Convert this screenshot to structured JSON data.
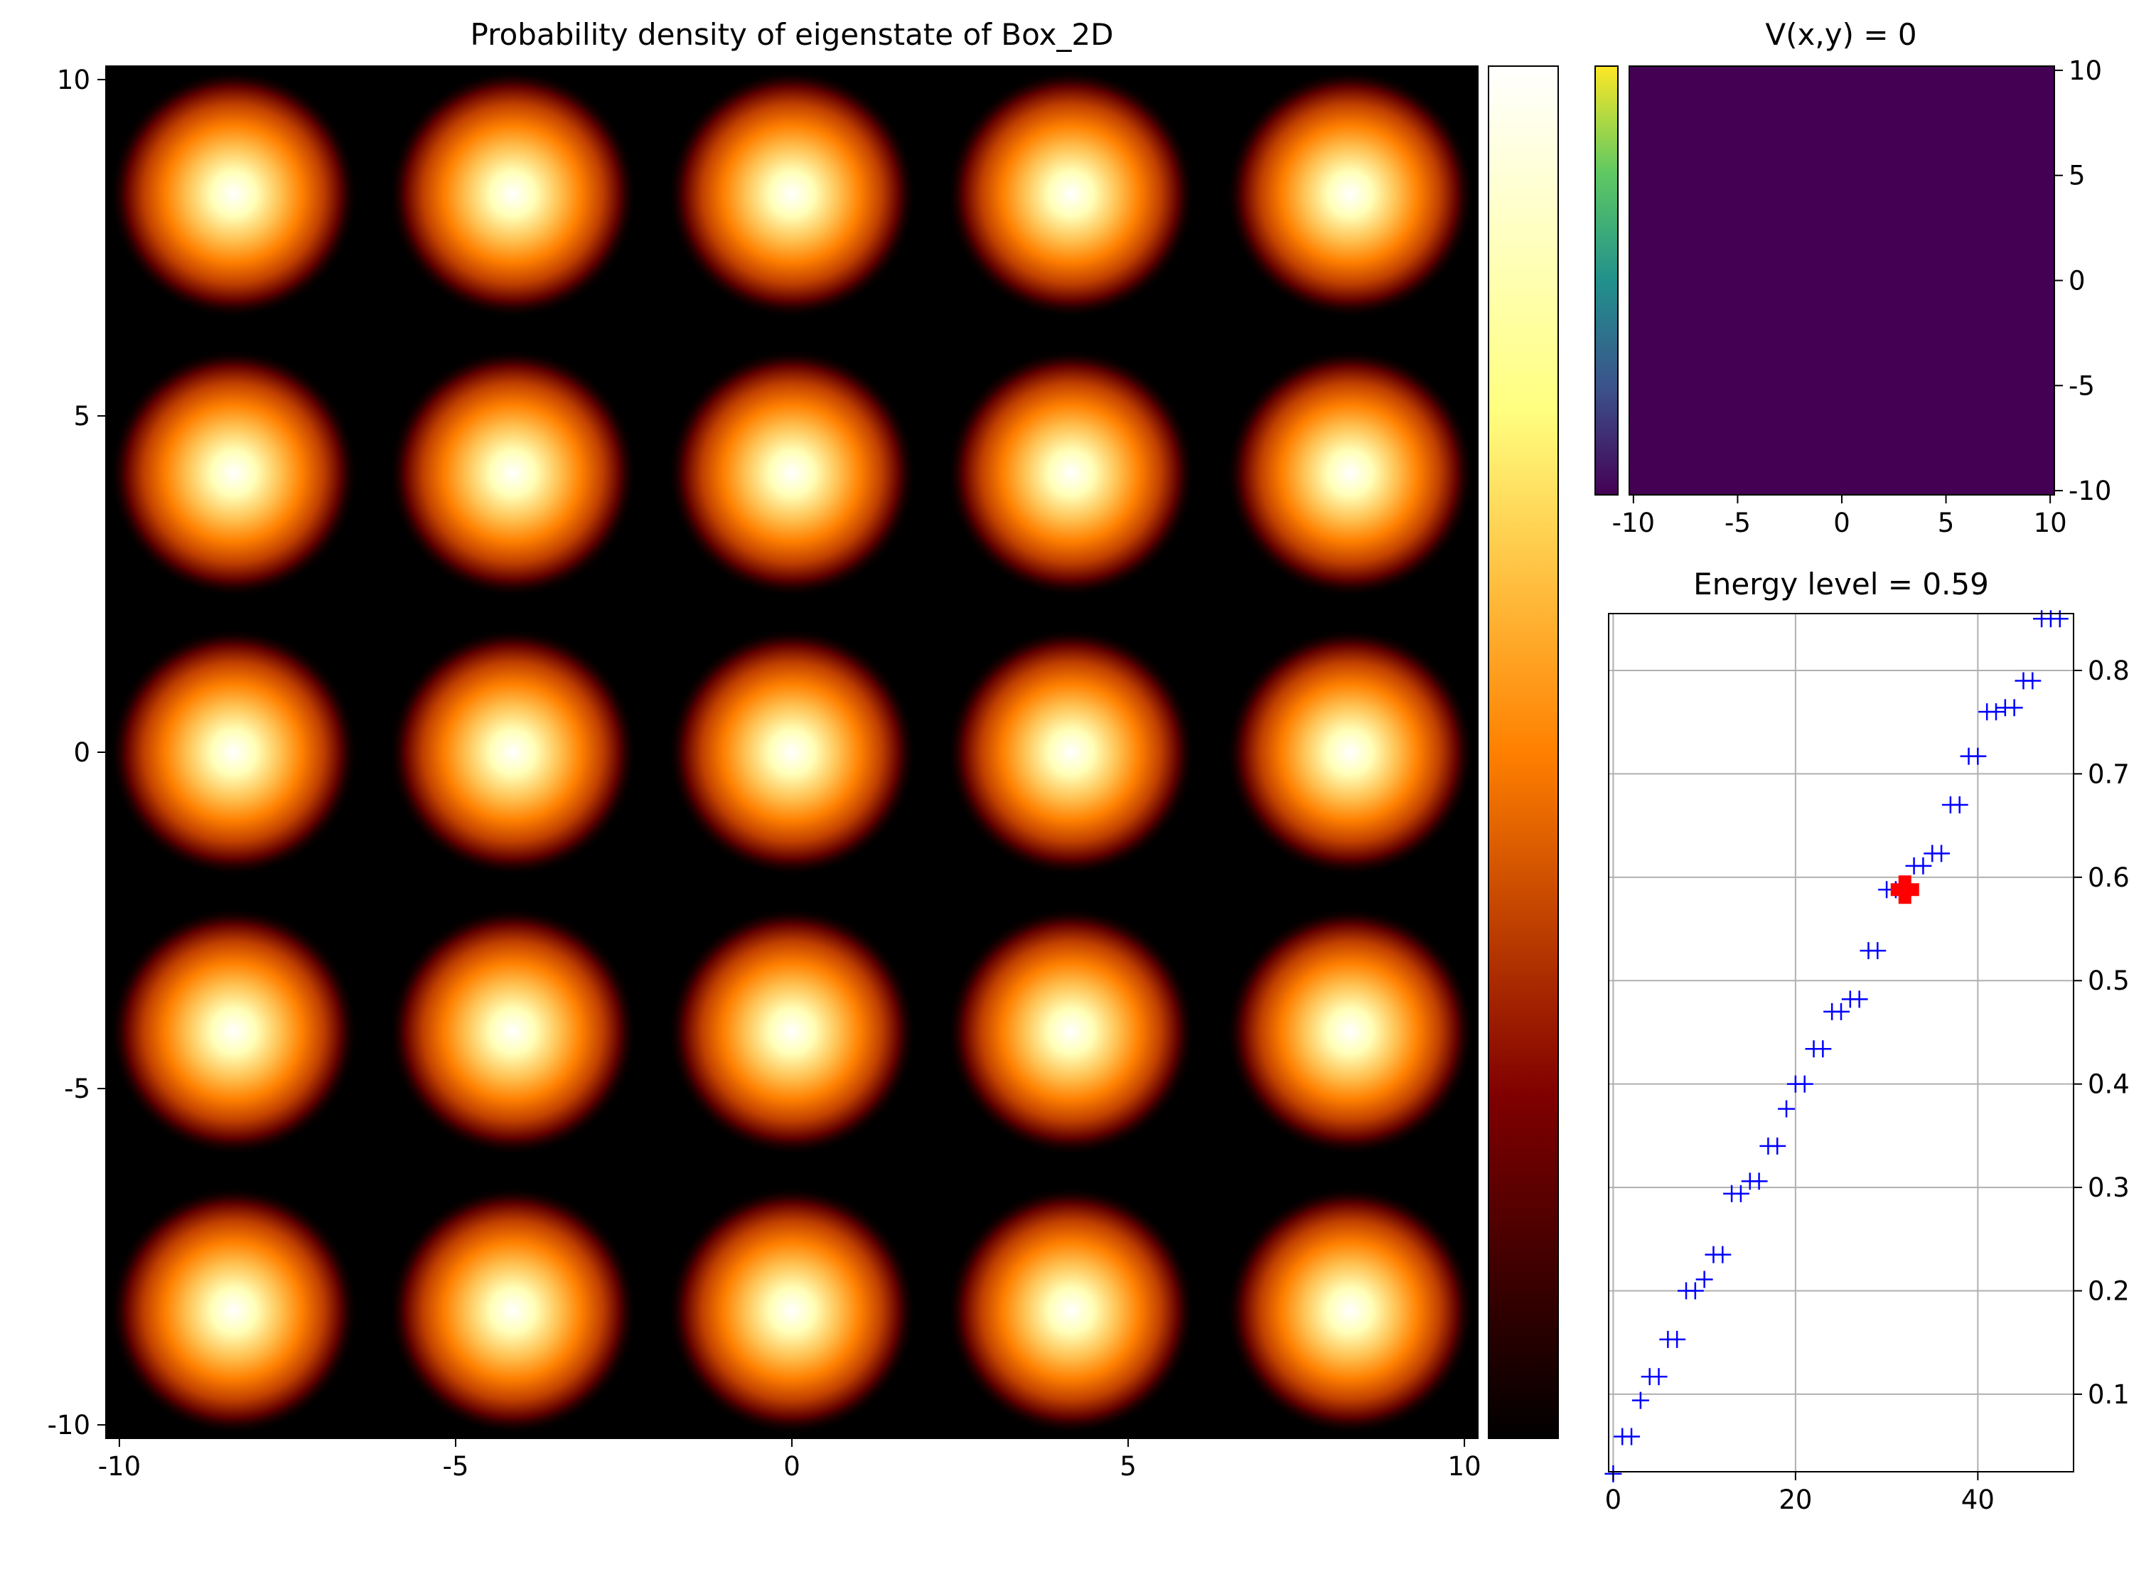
{
  "chart_data": [
    {
      "type": "heatmap",
      "title": "Probability density of eigenstate of Box_2D",
      "xlim": [
        -10.2,
        10.2
      ],
      "ylim": [
        -10.2,
        10.2
      ],
      "xticks": [
        -10,
        -5,
        0,
        5,
        10
      ],
      "yticks": [
        -10,
        -5,
        0,
        5,
        10
      ],
      "xtick_labels": [
        "-10",
        "-5",
        "0",
        "5",
        "10"
      ],
      "ytick_labels": [
        "-10",
        "-5",
        "0",
        "5",
        "10"
      ],
      "colormap": "afmhot",
      "peaks_x": [
        -8.3,
        -4.15,
        0.0,
        4.15,
        8.3
      ],
      "peaks_y": [
        8.3,
        4.15,
        0.0,
        -4.15,
        -8.3
      ],
      "colorbar": "right",
      "grid": false
    },
    {
      "type": "heatmap",
      "title": "V(x,y) = 0",
      "xlim": [
        -10.2,
        10.2
      ],
      "ylim": [
        -10.2,
        10.2
      ],
      "xticks": [
        -10,
        -5,
        0,
        5,
        10
      ],
      "yticks": [
        -10,
        -5,
        0,
        5,
        10
      ],
      "xtick_labels": [
        "-10",
        "-5",
        "0",
        "5",
        "10"
      ],
      "ytick_labels": [
        "10",
        "5",
        "0",
        "-5",
        "-10"
      ],
      "value": 0,
      "colormap": "viridis",
      "colorbar": "left",
      "grid": false
    },
    {
      "type": "scatter",
      "title": "Energy level = 0.59",
      "xlim": [
        -0.5,
        50.5
      ],
      "ylim": [
        0.025,
        0.855
      ],
      "xticks": [
        0,
        20,
        40
      ],
      "yticks": [
        0.1,
        0.2,
        0.3,
        0.4,
        0.5,
        0.6,
        0.7,
        0.8
      ],
      "xtick_labels": [
        "0",
        "20",
        "40"
      ],
      "ytick_labels": [
        "0.1",
        "0.2",
        "0.3",
        "0.4",
        "0.5",
        "0.6",
        "0.7",
        "0.8"
      ],
      "grid": true,
      "marker": "+",
      "series_color": "#0000ff",
      "highlight_color": "#ff0000",
      "x": [
        0,
        1,
        2,
        3,
        4,
        5,
        6,
        7,
        8,
        9,
        10,
        11,
        12,
        13,
        14,
        15,
        16,
        17,
        18,
        19,
        20,
        21,
        22,
        23,
        24,
        25,
        26,
        27,
        28,
        29,
        30,
        31,
        32,
        33,
        34,
        35,
        36,
        37,
        38,
        39,
        40,
        41,
        42,
        43,
        44,
        45,
        46,
        47,
        48,
        49
      ],
      "y": [
        0.023,
        0.059,
        0.059,
        0.094,
        0.117,
        0.117,
        0.153,
        0.153,
        0.2,
        0.2,
        0.211,
        0.235,
        0.235,
        0.294,
        0.294,
        0.306,
        0.306,
        0.34,
        0.34,
        0.376,
        0.4,
        0.4,
        0.434,
        0.434,
        0.47,
        0.47,
        0.482,
        0.482,
        0.529,
        0.529,
        0.588,
        0.588,
        0.588,
        0.611,
        0.611,
        0.623,
        0.623,
        0.67,
        0.67,
        0.717,
        0.717,
        0.76,
        0.76,
        0.764,
        0.764,
        0.79,
        0.79,
        0.85,
        0.85,
        0.85
      ],
      "highlight": {
        "x": 32,
        "y": 0.588
      }
    }
  ]
}
